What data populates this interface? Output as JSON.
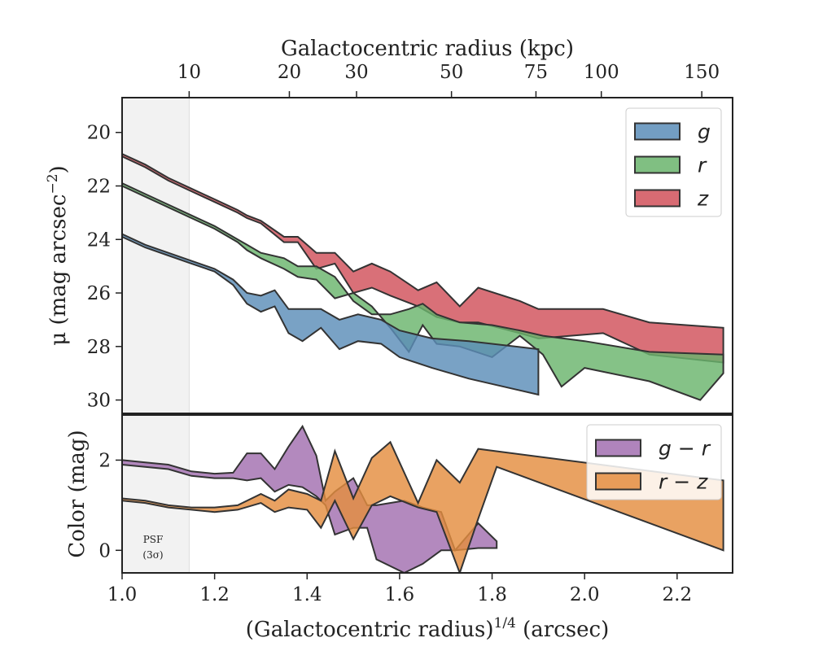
{
  "chart_data": [
    {
      "type": "area",
      "panel": "top",
      "ylabel_main": "μ (mag arcsec",
      "ylabel_exp": "−2",
      "ylabel_close": ")",
      "top_xlabel": "Galactocentric radius (kpc)",
      "top_ticks": [
        {
          "label": "10",
          "value": 10
        },
        {
          "label": "20",
          "value": 20
        },
        {
          "label": "30",
          "value": 30
        },
        {
          "label": "50",
          "value": 50
        },
        {
          "label": "75",
          "value": 75
        },
        {
          "label": "100",
          "value": 100
        },
        {
          "label": "150",
          "value": 150
        }
      ],
      "xlim": [
        1.0,
        2.32
      ],
      "ylim": [
        30.5,
        18.7
      ],
      "y_inverted": true,
      "yticks": [
        20,
        22,
        24,
        26,
        28,
        30
      ],
      "legend_position": "top-right",
      "series": [
        {
          "name": "z",
          "color": "#d1515a",
          "upper": [
            [
              1.0,
              20.8
            ],
            [
              1.05,
              21.2
            ],
            [
              1.1,
              21.7
            ],
            [
              1.15,
              22.1
            ],
            [
              1.2,
              22.5
            ],
            [
              1.25,
              22.9
            ],
            [
              1.27,
              23.1
            ],
            [
              1.3,
              23.3
            ],
            [
              1.35,
              23.9
            ],
            [
              1.38,
              23.9
            ],
            [
              1.42,
              24.5
            ],
            [
              1.46,
              24.5
            ],
            [
              1.5,
              25.2
            ],
            [
              1.54,
              24.9
            ],
            [
              1.58,
              25.2
            ],
            [
              1.64,
              25.9
            ],
            [
              1.68,
              25.6
            ],
            [
              1.73,
              26.5
            ],
            [
              1.77,
              25.8
            ],
            [
              1.86,
              26.3
            ],
            [
              1.9,
              26.6
            ],
            [
              2.04,
              26.6
            ],
            [
              2.14,
              27.1
            ],
            [
              2.3,
              27.3
            ]
          ],
          "lower": [
            [
              1.0,
              20.9
            ],
            [
              1.05,
              21.3
            ],
            [
              1.1,
              21.8
            ],
            [
              1.15,
              22.2
            ],
            [
              1.2,
              22.6
            ],
            [
              1.25,
              23.0
            ],
            [
              1.27,
              23.2
            ],
            [
              1.3,
              23.4
            ],
            [
              1.35,
              24.1
            ],
            [
              1.38,
              24.1
            ],
            [
              1.42,
              25.1
            ],
            [
              1.46,
              24.9
            ],
            [
              1.5,
              26.0
            ],
            [
              1.54,
              25.8
            ],
            [
              1.58,
              26.1
            ],
            [
              1.64,
              26.5
            ],
            [
              1.68,
              26.9
            ],
            [
              1.73,
              27.1
            ],
            [
              1.77,
              27.1
            ],
            [
              1.86,
              27.5
            ],
            [
              1.9,
              27.7
            ],
            [
              2.04,
              27.5
            ],
            [
              2.14,
              28.3
            ],
            [
              2.3,
              28.6
            ]
          ]
        },
        {
          "name": "r",
          "color": "#6ab46c",
          "upper": [
            [
              1.0,
              21.9
            ],
            [
              1.05,
              22.3
            ],
            [
              1.1,
              22.7
            ],
            [
              1.15,
              23.1
            ],
            [
              1.2,
              23.5
            ],
            [
              1.25,
              24.0
            ],
            [
              1.27,
              24.2
            ],
            [
              1.3,
              24.5
            ],
            [
              1.35,
              24.7
            ],
            [
              1.38,
              25.0
            ],
            [
              1.42,
              25.0
            ],
            [
              1.46,
              25.4
            ],
            [
              1.5,
              26.3
            ],
            [
              1.54,
              26.8
            ],
            [
              1.58,
              26.8
            ],
            [
              1.62,
              26.6
            ],
            [
              1.65,
              26.4
            ],
            [
              1.68,
              26.8
            ],
            [
              1.73,
              27.1
            ],
            [
              1.8,
              27.2
            ],
            [
              1.86,
              27.4
            ],
            [
              1.91,
              27.6
            ],
            [
              2.0,
              27.8
            ],
            [
              2.14,
              28.2
            ],
            [
              2.3,
              28.3
            ]
          ],
          "lower": [
            [
              1.0,
              22.0
            ],
            [
              1.05,
              22.4
            ],
            [
              1.1,
              22.8
            ],
            [
              1.15,
              23.2
            ],
            [
              1.2,
              23.6
            ],
            [
              1.25,
              24.1
            ],
            [
              1.27,
              24.4
            ],
            [
              1.3,
              24.7
            ],
            [
              1.35,
              25.1
            ],
            [
              1.38,
              25.4
            ],
            [
              1.42,
              25.5
            ],
            [
              1.46,
              26.2
            ],
            [
              1.5,
              26.0
            ],
            [
              1.54,
              26.5
            ],
            [
              1.58,
              27.3
            ],
            [
              1.62,
              28.2
            ],
            [
              1.65,
              27.2
            ],
            [
              1.68,
              27.9
            ],
            [
              1.73,
              28.0
            ],
            [
              1.8,
              28.4
            ],
            [
              1.86,
              27.6
            ],
            [
              1.91,
              28.3
            ],
            [
              1.95,
              29.5
            ],
            [
              2.0,
              28.8
            ],
            [
              2.14,
              29.3
            ],
            [
              2.25,
              30.0
            ],
            [
              2.3,
              29.0
            ]
          ]
        },
        {
          "name": "g",
          "color": "#5b8db8",
          "upper": [
            [
              1.0,
              23.8
            ],
            [
              1.05,
              24.2
            ],
            [
              1.1,
              24.5
            ],
            [
              1.15,
              24.8
            ],
            [
              1.2,
              25.1
            ],
            [
              1.24,
              25.5
            ],
            [
              1.27,
              26.0
            ],
            [
              1.3,
              26.1
            ],
            [
              1.33,
              25.9
            ],
            [
              1.36,
              26.6
            ],
            [
              1.4,
              26.6
            ],
            [
              1.43,
              26.6
            ],
            [
              1.47,
              27.0
            ],
            [
              1.51,
              26.8
            ],
            [
              1.56,
              27.0
            ],
            [
              1.6,
              27.4
            ],
            [
              1.67,
              27.7
            ],
            [
              1.75,
              27.8
            ],
            [
              1.9,
              28.1
            ]
          ],
          "lower": [
            [
              1.0,
              23.9
            ],
            [
              1.05,
              24.3
            ],
            [
              1.1,
              24.6
            ],
            [
              1.15,
              24.9
            ],
            [
              1.2,
              25.2
            ],
            [
              1.24,
              25.7
            ],
            [
              1.27,
              26.4
            ],
            [
              1.3,
              26.7
            ],
            [
              1.33,
              26.5
            ],
            [
              1.36,
              27.5
            ],
            [
              1.39,
              27.8
            ],
            [
              1.43,
              27.3
            ],
            [
              1.47,
              28.1
            ],
            [
              1.51,
              27.8
            ],
            [
              1.56,
              27.9
            ],
            [
              1.6,
              28.4
            ],
            [
              1.67,
              28.8
            ],
            [
              1.75,
              29.2
            ],
            [
              1.9,
              29.8
            ]
          ]
        }
      ]
    },
    {
      "type": "area",
      "panel": "bottom",
      "xlabel_main": "(Galactocentric radius)",
      "xlabel_exp": "1/4",
      "xlabel_unit": " (arcsec)",
      "ylabel": "Color (mag)",
      "xlim": [
        1.0,
        2.32
      ],
      "ylim": [
        -0.5,
        3.0
      ],
      "xticks": [
        {
          "label": "1.0",
          "value": 1.0
        },
        {
          "label": "1.2",
          "value": 1.2
        },
        {
          "label": "1.4",
          "value": 1.4
        },
        {
          "label": "1.6",
          "value": 1.6
        },
        {
          "label": "1.8",
          "value": 1.8
        },
        {
          "label": "2.0",
          "value": 2.0
        },
        {
          "label": "2.2",
          "value": 2.2
        }
      ],
      "yticks": [
        0,
        2
      ],
      "legend_position": "top-right",
      "series": [
        {
          "name": "g − r",
          "color": "#a26fb0",
          "upper": [
            [
              1.0,
              2.0
            ],
            [
              1.05,
              1.95
            ],
            [
              1.1,
              1.9
            ],
            [
              1.15,
              1.75
            ],
            [
              1.2,
              1.7
            ],
            [
              1.24,
              1.72
            ],
            [
              1.27,
              2.15
            ],
            [
              1.3,
              2.15
            ],
            [
              1.33,
              1.8
            ],
            [
              1.36,
              2.3
            ],
            [
              1.39,
              2.75
            ],
            [
              1.42,
              2.1
            ],
            [
              1.44,
              1.1
            ],
            [
              1.46,
              1.3
            ],
            [
              1.5,
              1.6
            ],
            [
              1.53,
              1.0
            ],
            [
              1.55,
              1.0
            ],
            [
              1.61,
              1.1
            ],
            [
              1.65,
              0.95
            ],
            [
              1.69,
              0.85
            ],
            [
              1.72,
              0.0
            ],
            [
              1.77,
              0.6
            ],
            [
              1.81,
              0.2
            ]
          ],
          "lower": [
            [
              1.0,
              1.9
            ],
            [
              1.05,
              1.85
            ],
            [
              1.1,
              1.8
            ],
            [
              1.15,
              1.65
            ],
            [
              1.2,
              1.6
            ],
            [
              1.24,
              1.6
            ],
            [
              1.27,
              1.55
            ],
            [
              1.3,
              1.6
            ],
            [
              1.33,
              1.3
            ],
            [
              1.36,
              1.45
            ],
            [
              1.39,
              1.4
            ],
            [
              1.42,
              1.2
            ],
            [
              1.44,
              1.0
            ],
            [
              1.46,
              0.35
            ],
            [
              1.5,
              0.5
            ],
            [
              1.53,
              0.5
            ],
            [
              1.55,
              -0.2
            ],
            [
              1.61,
              -0.5
            ],
            [
              1.65,
              -0.3
            ],
            [
              1.69,
              0.0
            ],
            [
              1.72,
              0.0
            ],
            [
              1.77,
              0.05
            ],
            [
              1.81,
              0.05
            ]
          ]
        },
        {
          "name": "r − z",
          "color": "#e48d3f",
          "upper": [
            [
              1.0,
              1.15
            ],
            [
              1.05,
              1.1
            ],
            [
              1.1,
              1.0
            ],
            [
              1.15,
              0.95
            ],
            [
              1.2,
              0.95
            ],
            [
              1.25,
              1.0
            ],
            [
              1.3,
              1.25
            ],
            [
              1.33,
              1.1
            ],
            [
              1.36,
              1.35
            ],
            [
              1.4,
              1.25
            ],
            [
              1.43,
              1.1
            ],
            [
              1.46,
              2.2
            ],
            [
              1.5,
              1.15
            ],
            [
              1.54,
              2.05
            ],
            [
              1.58,
              2.4
            ],
            [
              1.64,
              1.05
            ],
            [
              1.68,
              2.0
            ],
            [
              1.73,
              1.5
            ],
            [
              1.77,
              2.25
            ],
            [
              2.3,
              1.55
            ]
          ],
          "lower": [
            [
              1.0,
              1.1
            ],
            [
              1.05,
              1.05
            ],
            [
              1.1,
              0.95
            ],
            [
              1.15,
              0.9
            ],
            [
              1.2,
              0.85
            ],
            [
              1.25,
              0.9
            ],
            [
              1.3,
              1.05
            ],
            [
              1.33,
              0.85
            ],
            [
              1.36,
              0.95
            ],
            [
              1.4,
              0.9
            ],
            [
              1.43,
              0.5
            ],
            [
              1.46,
              1.1
            ],
            [
              1.5,
              0.25
            ],
            [
              1.54,
              1.0
            ],
            [
              1.58,
              1.2
            ],
            [
              1.64,
              0.95
            ],
            [
              1.68,
              0.85
            ],
            [
              1.73,
              -0.5
            ],
            [
              1.77,
              0.7
            ],
            [
              1.81,
              1.85
            ],
            [
              2.3,
              0.0
            ]
          ]
        }
      ]
    }
  ],
  "psf_label_line1": "PSF",
  "psf_label_line2": "(3σ)",
  "psf_xmax": 1.145,
  "psf_color": "#f2f2f2"
}
